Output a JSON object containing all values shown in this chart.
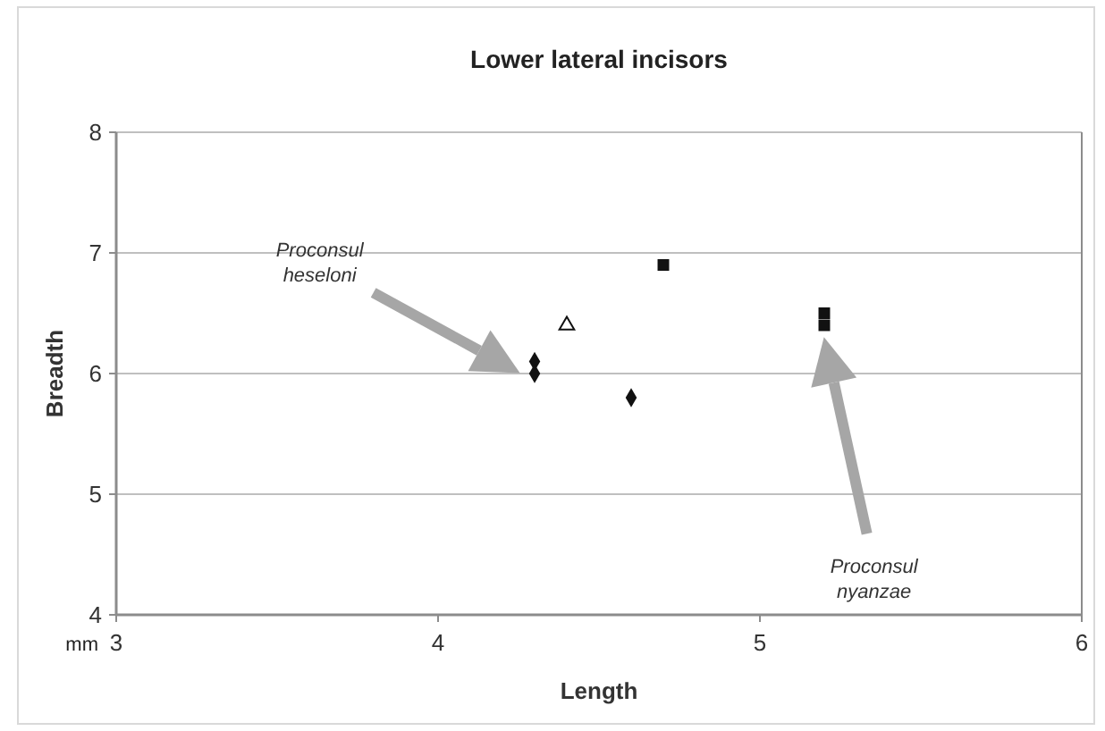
{
  "chart_data": {
    "type": "scatter",
    "title": "Lower lateral incisors",
    "xlabel": "Length",
    "ylabel": "Breadth",
    "xlim": [
      3,
      6
    ],
    "xticks": [
      3,
      4,
      5,
      6
    ],
    "ylim": [
      4,
      8
    ],
    "yticks": [
      4,
      5,
      6,
      7,
      8
    ],
    "grid": "y",
    "series": [
      {
        "color": "#111111",
        "marker": "diamond",
        "x": [
          4.3,
          4.3,
          4.6
        ],
        "values": [
          6.1,
          6.0,
          5.8
        ]
      },
      {
        "color": "#111111",
        "marker": "triangle",
        "x": [
          4.4
        ],
        "values": [
          6.4
        ]
      },
      {
        "color": "#111111",
        "marker": "square",
        "x": [
          4.7,
          5.2,
          5.2
        ],
        "values": [
          6.9,
          6.4,
          6.5
        ]
      }
    ],
    "annotations": [
      "Proconsul heseloni",
      "Proconsul nyanzae",
      "mm"
    ]
  }
}
